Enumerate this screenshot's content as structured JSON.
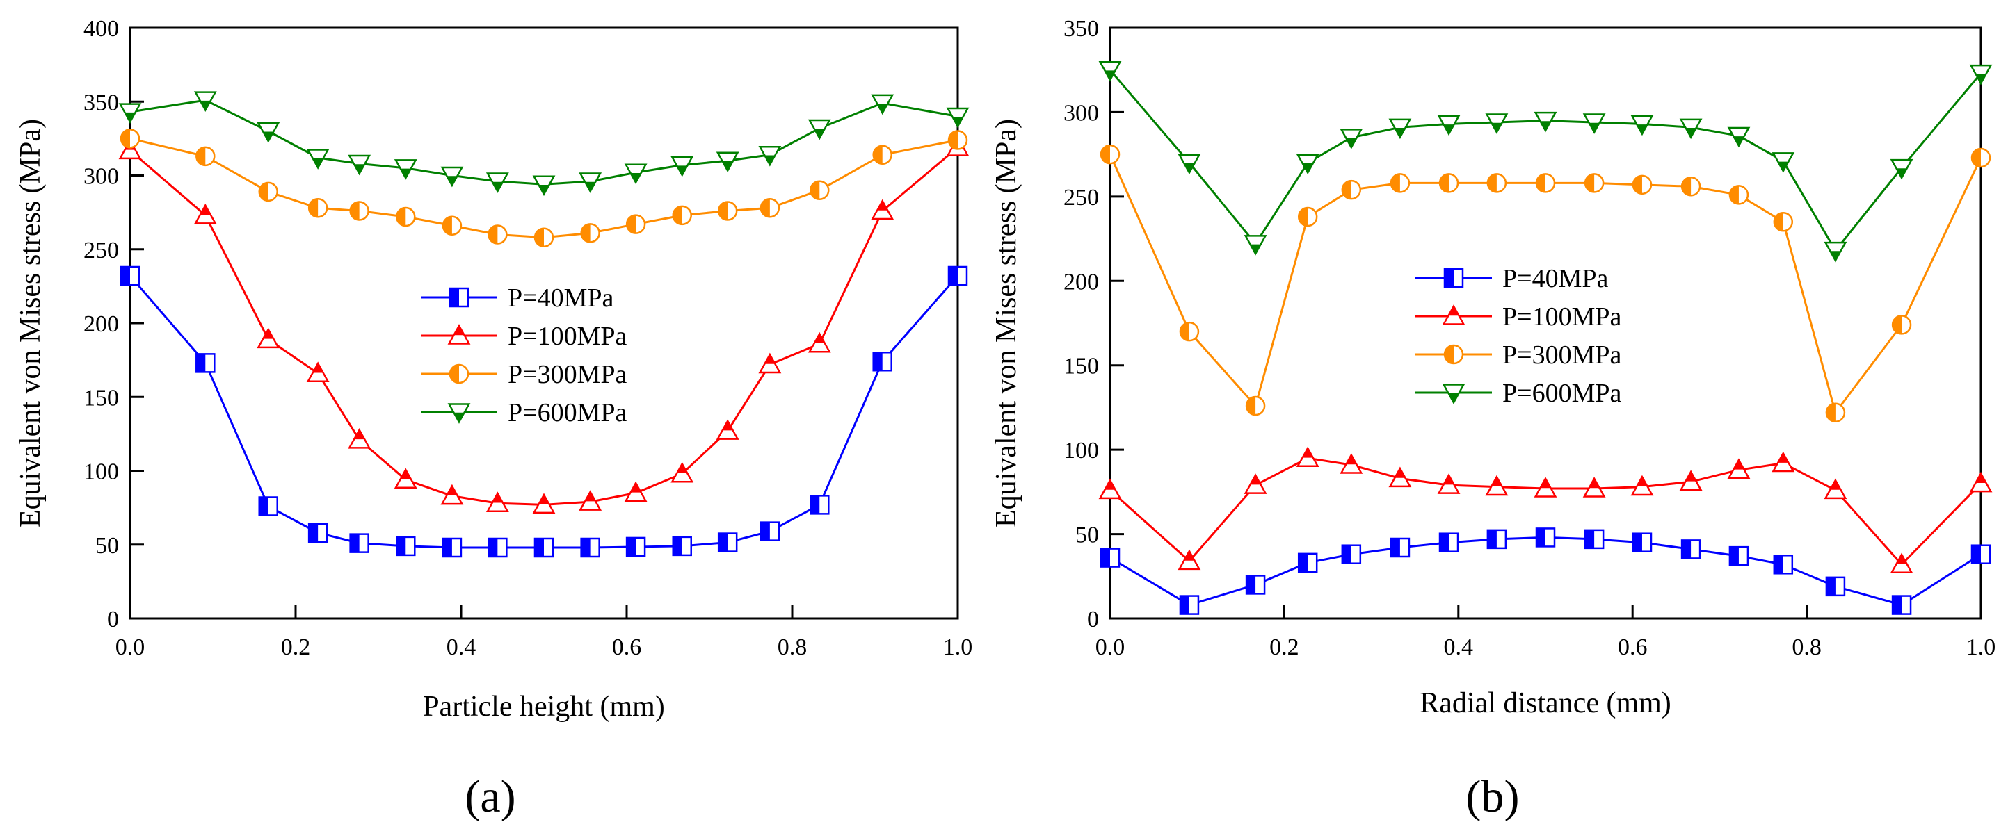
{
  "colors": {
    "P40": "#0000ff",
    "P100": "#ff0000",
    "P300": "#ff8c00",
    "P600": "#008000"
  },
  "chart_data": [
    {
      "type": "line",
      "panel_label": "(a)",
      "xlabel": "Particle height (mm)",
      "ylabel": "Equivalent von Mises stress (MPa)",
      "xlim": [
        0,
        1
      ],
      "ylim": [
        0,
        400
      ],
      "xticks": [
        0.0,
        0.2,
        0.4,
        0.6,
        0.8,
        1.0
      ],
      "xtick_labels": [
        "0.0",
        "0.2",
        "0.4",
        "0.6",
        "0.8",
        "1.0"
      ],
      "yticks": [
        0,
        50,
        100,
        150,
        200,
        250,
        300,
        350,
        400
      ],
      "ytick_labels": [
        "0",
        "50",
        "100",
        "150",
        "200",
        "250",
        "300",
        "350",
        "400"
      ],
      "legend_position": "center",
      "x": [
        0.0,
        0.091,
        0.167,
        0.227,
        0.277,
        0.333,
        0.389,
        0.444,
        0.5,
        0.556,
        0.611,
        0.667,
        0.722,
        0.773,
        0.833,
        0.909,
        1.0
      ],
      "series": [
        {
          "name": "P=40MPa",
          "color_key": "P40",
          "marker": "square",
          "values": [
            232,
            173,
            76,
            58,
            51,
            49,
            48,
            48,
            48,
            48,
            48.5,
            49,
            51.5,
            59,
            77,
            174,
            232
          ]
        },
        {
          "name": "P=100MPa",
          "color_key": "P100",
          "marker": "triangle-up",
          "values": [
            317,
            273,
            189,
            166,
            121,
            94,
            83,
            78,
            77,
            79,
            85,
            98,
            127,
            172,
            186,
            276,
            319
          ]
        },
        {
          "name": "P=300MPa",
          "color_key": "P300",
          "marker": "circle",
          "values": [
            325,
            313,
            289,
            278,
            276,
            272,
            266,
            260,
            258,
            261,
            267,
            273,
            276,
            278,
            290,
            314,
            324
          ]
        },
        {
          "name": "P=600MPa",
          "color_key": "P600",
          "marker": "triangle-down",
          "values": [
            343,
            351,
            330,
            312,
            308,
            305,
            300,
            296,
            294,
            296,
            302,
            307,
            310,
            314,
            332,
            349,
            340
          ]
        }
      ]
    },
    {
      "type": "line",
      "panel_label": "(b)",
      "xlabel": "Radial distance (mm)",
      "ylabel": "Equivalent von Mises stress (MPa)",
      "xlim": [
        0,
        1
      ],
      "ylim": [
        0,
        350
      ],
      "xticks": [
        0.0,
        0.2,
        0.4,
        0.6,
        0.8,
        1.0
      ],
      "xtick_labels": [
        "0.0",
        "0.2",
        "0.4",
        "0.6",
        "0.8",
        "1.0"
      ],
      "yticks": [
        0,
        50,
        100,
        150,
        200,
        250,
        300,
        350
      ],
      "ytick_labels": [
        "0",
        "50",
        "100",
        "150",
        "200",
        "250",
        "300",
        "350"
      ],
      "legend_position": "upper-left",
      "x": [
        0.0,
        0.091,
        0.167,
        0.227,
        0.277,
        0.333,
        0.389,
        0.444,
        0.5,
        0.556,
        0.611,
        0.667,
        0.722,
        0.773,
        0.833,
        0.909,
        1.0
      ],
      "series": [
        {
          "name": "P=40MPa",
          "color_key": "P40",
          "marker": "square",
          "values": [
            36,
            8,
            20,
            33,
            38,
            42,
            45,
            47,
            48,
            47,
            45,
            41,
            37,
            32,
            19,
            8,
            38
          ]
        },
        {
          "name": "P=100MPa",
          "color_key": "P100",
          "marker": "triangle-up",
          "values": [
            76,
            34,
            79,
            95,
            91,
            83,
            79,
            78,
            77,
            77,
            78,
            81,
            88,
            92,
            76,
            32,
            80
          ]
        },
        {
          "name": "P=300MPa",
          "color_key": "P300",
          "marker": "circle",
          "values": [
            275,
            170,
            126,
            238,
            254,
            258,
            258,
            258,
            258,
            258,
            257,
            256,
            251,
            235,
            122,
            174,
            273
          ]
        },
        {
          "name": "P=600MPa",
          "color_key": "P600",
          "marker": "triangle-down",
          "values": [
            325,
            270,
            222,
            270,
            285,
            291,
            293,
            294,
            295,
            294,
            293,
            291,
            286,
            271,
            218,
            267,
            323
          ]
        }
      ]
    }
  ]
}
